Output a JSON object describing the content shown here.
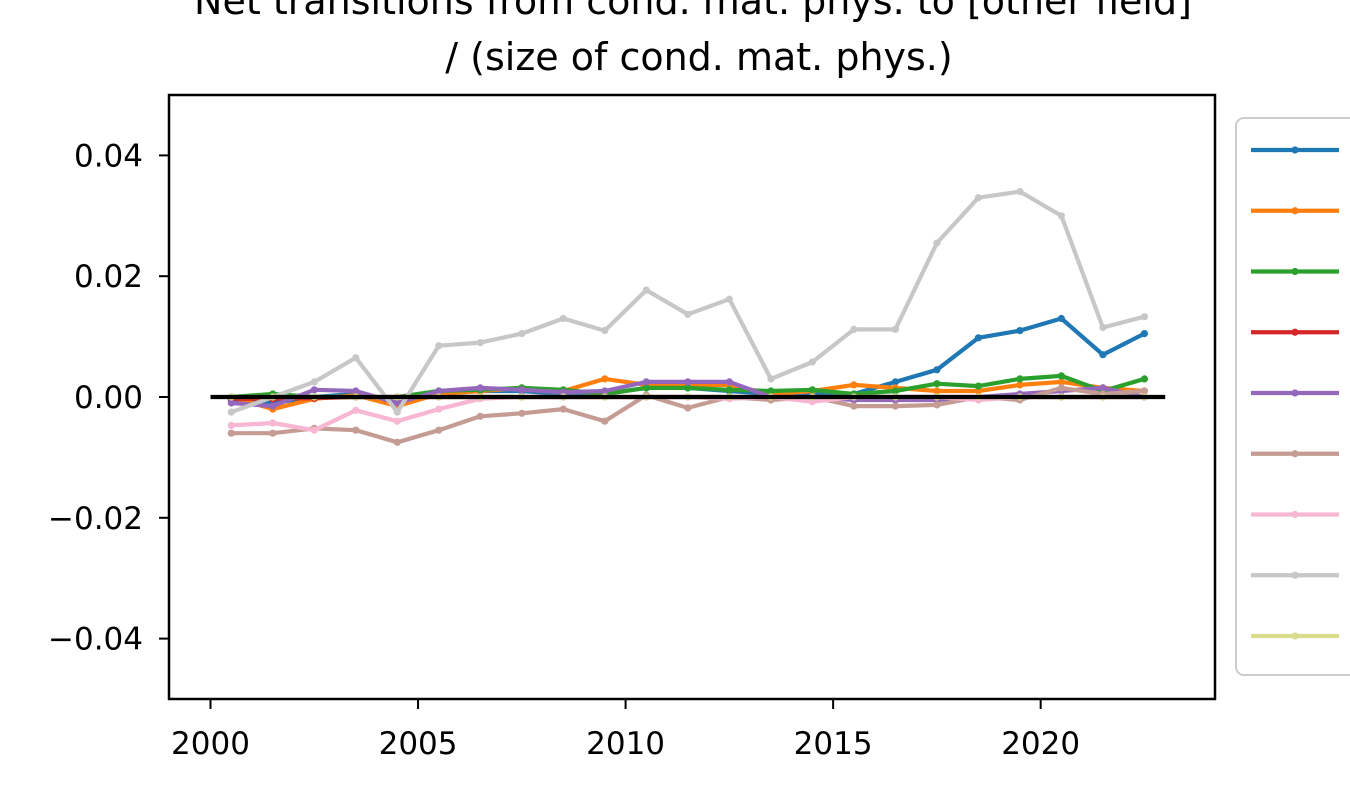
{
  "chart_data": {
    "type": "line",
    "title_lines": [
      "Net transitions from cond. mat. phys. to [other field]",
      "/ (size of cond. mat. phys.)"
    ],
    "xlabel": "",
    "ylabel": "",
    "xlim": [
      1999.0,
      2024.2
    ],
    "ylim": [
      -0.05,
      0.05
    ],
    "x_ticks": [
      2000,
      2005,
      2010,
      2015,
      2020
    ],
    "x_tick_labels": [
      "2000",
      "2005",
      "2010",
      "2015",
      "2020"
    ],
    "y_ticks": [
      0.04,
      0.02,
      0.0,
      -0.02,
      -0.04
    ],
    "y_tick_labels": [
      "0.04",
      "0.02",
      "0.00",
      "−0.02",
      "−0.04"
    ],
    "legend_position": "outside-right",
    "grid": false,
    "x": [
      2000.5,
      2001.5,
      2002.5,
      2003.5,
      2004.5,
      2005.5,
      2006.5,
      2007.5,
      2008.5,
      2009.5,
      2010.5,
      2011.5,
      2012.5,
      2013.5,
      2014.5,
      2015.5,
      2016.5,
      2017.5,
      2018.5,
      2019.5,
      2020.5,
      2021.5,
      2022.5
    ],
    "reference_line": {
      "y": 0,
      "x_range": [
        2000,
        2023
      ],
      "color": "#000000"
    },
    "series": [
      {
        "color": "#1f77b4",
        "values": [
          -0.0005,
          -0.001,
          0.0,
          0.0005,
          -0.001,
          0.0005,
          0.001,
          0.001,
          0.0005,
          0.0005,
          0.0015,
          0.0015,
          0.001,
          0.0005,
          0.0005,
          0.0005,
          0.0025,
          0.0045,
          0.0098,
          0.011,
          0.013,
          0.007,
          0.0105
        ]
      },
      {
        "color": "#ff7f0e",
        "values": [
          0.0,
          -0.002,
          -0.0003,
          0.0003,
          -0.0015,
          0.0005,
          0.001,
          0.0015,
          0.001,
          0.003,
          0.002,
          0.002,
          0.002,
          0.0005,
          0.001,
          0.002,
          0.0015,
          0.001,
          0.001,
          0.002,
          0.0025,
          0.0015,
          0.001
        ]
      },
      {
        "color": "#2ca02c",
        "values": [
          0.0,
          0.0005,
          0.0,
          0.0,
          0.0,
          0.001,
          0.0012,
          0.0015,
          0.0012,
          0.0005,
          0.0015,
          0.0015,
          0.0012,
          0.001,
          0.0012,
          0.0005,
          0.001,
          0.0022,
          0.0018,
          0.003,
          0.0035,
          0.001,
          0.003
        ]
      },
      {
        "color": "#d62728",
        "values": [
          -0.0003,
          -0.0003,
          -0.0002,
          0.0,
          0.0,
          0.0,
          0.0,
          0.0,
          0.0,
          0.0,
          0.0,
          0.0,
          0.0,
          0.0,
          0.0,
          0.0,
          0.0,
          0.0,
          0.0,
          0.0,
          0.0,
          0.0,
          0.0
        ]
      },
      {
        "color": "#9467bd",
        "values": [
          -0.001,
          -0.0015,
          0.0012,
          0.001,
          -0.001,
          0.001,
          0.0015,
          0.0012,
          0.0008,
          0.001,
          0.0025,
          0.0025,
          0.0025,
          0.0,
          0.0,
          -0.0005,
          -0.0005,
          -0.0005,
          0.0,
          0.0005,
          0.001,
          0.0015,
          0.0
        ]
      },
      {
        "color": "#c49c94",
        "values": [
          -0.006,
          -0.006,
          -0.0052,
          -0.0055,
          -0.0075,
          -0.0055,
          -0.0032,
          -0.0027,
          -0.002,
          -0.004,
          0.0003,
          -0.0018,
          0.0,
          -0.0005,
          0.0,
          -0.0015,
          -0.0015,
          -0.0013,
          0.0,
          -0.0005,
          0.0015,
          0.0005,
          0.001
        ]
      },
      {
        "color": "#f7b6d2",
        "values": [
          -0.0047,
          -0.0043,
          -0.0055,
          -0.0022,
          -0.004,
          -0.002,
          -0.0003,
          0.0,
          0.0,
          0.0,
          0.0,
          0.0,
          -0.0003,
          0.0,
          -0.0008,
          0.0,
          0.0,
          0.0,
          -0.0005,
          0.0,
          0.0,
          0.0,
          0.0
        ]
      },
      {
        "color": "#c7c7c7",
        "values": [
          -0.0025,
          0.0,
          0.0025,
          0.0065,
          -0.0025,
          0.0085,
          0.009,
          0.0105,
          0.013,
          0.011,
          0.0177,
          0.0137,
          0.0162,
          0.003,
          0.0058,
          0.0112,
          0.0112,
          0.0255,
          0.033,
          0.034,
          0.03,
          0.0115,
          0.0133
        ]
      },
      {
        "color": "#dbdb8d",
        "values": [
          0.0,
          0.0,
          0.0,
          0.0,
          0.0,
          0.0,
          0.0,
          0.0,
          0.0,
          0.0,
          0.0,
          0.0,
          0.0,
          0.0,
          0.0,
          0.0,
          0.0,
          0.0,
          0.0,
          0.0,
          0.0,
          0.0,
          0.0
        ]
      }
    ]
  }
}
